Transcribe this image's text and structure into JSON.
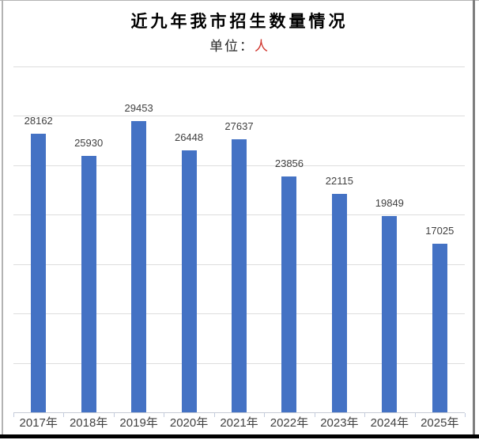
{
  "chart_data": {
    "type": "bar",
    "title": "近九年我市招生数量情况",
    "subtitle_unit_label": "单位：",
    "subtitle_unit_value": "人",
    "categories": [
      "2017年",
      "2018年",
      "2019年",
      "2020年",
      "2021年",
      "2022年",
      "2023年",
      "2024年",
      "2025年"
    ],
    "values": [
      28162,
      25930,
      29453,
      26448,
      27637,
      23856,
      22115,
      19849,
      17025
    ],
    "xlabel": "",
    "ylabel": "",
    "ylim": [
      0,
      35000
    ],
    "gridline_step": 5000,
    "grid_on": true,
    "legend_position": "none",
    "data_labels": "outside-end",
    "bar_color": "#4472C4",
    "value_label_color": "#404040",
    "axis_label_color": "#404040",
    "unit_value_color": "#d0342c",
    "gridline_color": "#dddddd"
  }
}
